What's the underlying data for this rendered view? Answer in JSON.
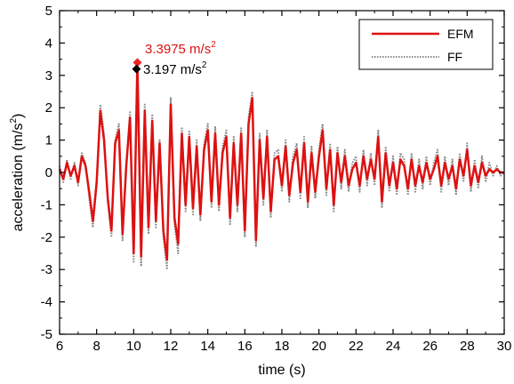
{
  "chart_data": {
    "type": "line",
    "xlabel": "time (s)",
    "ylabel_main": "acceleration (m/s",
    "ylabel_sup": "2",
    "ylabel_close": ")",
    "xlim": [
      6,
      30
    ],
    "ylim": [
      -5,
      5
    ],
    "x_ticks": [
      6,
      8,
      10,
      12,
      14,
      16,
      18,
      20,
      22,
      24,
      26,
      28,
      30
    ],
    "y_ticks": [
      -5,
      -4,
      -3,
      -2,
      -1,
      0,
      1,
      2,
      3,
      4,
      5
    ],
    "x_tick_labels": [
      "6",
      "8",
      "10",
      "12",
      "14",
      "16",
      "18",
      "20",
      "22",
      "24",
      "26",
      "28",
      "30"
    ],
    "y_tick_labels": [
      "-5",
      "-4",
      "-3",
      "-2",
      "-1",
      "0",
      "1",
      "2",
      "3",
      "4",
      "5"
    ],
    "grid": false,
    "legend_position": "top-right",
    "series": [
      {
        "name": "EFM",
        "color": "#dd1111",
        "style": "solid",
        "x": [
          6.0,
          6.2,
          6.4,
          6.6,
          6.8,
          7.0,
          7.2,
          7.4,
          7.6,
          7.8,
          8.0,
          8.2,
          8.4,
          8.6,
          8.8,
          9.0,
          9.2,
          9.4,
          9.6,
          9.8,
          10.0,
          10.2,
          10.4,
          10.6,
          10.8,
          11.0,
          11.2,
          11.4,
          11.6,
          11.8,
          12.0,
          12.2,
          12.4,
          12.6,
          12.8,
          13.0,
          13.2,
          13.4,
          13.6,
          13.8,
          14.0,
          14.2,
          14.4,
          14.6,
          14.8,
          15.0,
          15.2,
          15.4,
          15.6,
          15.8,
          16.0,
          16.2,
          16.4,
          16.6,
          16.8,
          17.0,
          17.2,
          17.4,
          17.6,
          17.8,
          18.0,
          18.2,
          18.4,
          18.6,
          18.8,
          19.0,
          19.2,
          19.4,
          19.6,
          19.8,
          20.0,
          20.2,
          20.4,
          20.6,
          20.8,
          21.0,
          21.2,
          21.4,
          21.6,
          21.8,
          22.0,
          22.2,
          22.4,
          22.6,
          22.8,
          23.0,
          23.2,
          23.4,
          23.6,
          23.8,
          24.0,
          24.2,
          24.4,
          24.6,
          24.8,
          25.0,
          25.2,
          25.4,
          25.6,
          25.8,
          26.0,
          26.2,
          26.4,
          26.6,
          26.8,
          27.0,
          27.2,
          27.4,
          27.6,
          27.8,
          28.0,
          28.2,
          28.4,
          28.6,
          28.8,
          29.0,
          29.2,
          29.4,
          29.6,
          29.8,
          30.0
        ],
        "y": [
          0.1,
          -0.2,
          0.3,
          -0.1,
          0.2,
          -0.3,
          0.5,
          0.2,
          -0.6,
          -1.5,
          -0.3,
          1.9,
          1.0,
          -0.8,
          -1.8,
          0.9,
          1.3,
          -1.9,
          0.2,
          1.7,
          -2.5,
          3.4,
          -2.6,
          1.9,
          -1.7,
          1.6,
          -1.5,
          0.9,
          -1.8,
          -2.7,
          2.1,
          -1.4,
          -2.2,
          1.2,
          -1.0,
          1.1,
          -1.1,
          0.8,
          -1.3,
          0.7,
          1.3,
          -0.9,
          1.2,
          -1.0,
          0.6,
          1.1,
          -1.4,
          0.9,
          -1.0,
          1.2,
          -1.8,
          1.5,
          2.3,
          -2.1,
          1.0,
          -0.8,
          1.1,
          -1.2,
          0.4,
          0.5,
          -0.4,
          0.8,
          -0.7,
          0.3,
          0.7,
          -0.6,
          0.9,
          -0.9,
          0.6,
          -0.6,
          0.5,
          1.3,
          -0.5,
          0.7,
          -1.0,
          0.6,
          -0.3,
          0.5,
          -0.4,
          0.1,
          0.3,
          -0.4,
          0.5,
          -0.2,
          0.4,
          -0.2,
          1.1,
          -0.9,
          0.6,
          -0.4,
          0.3,
          -0.5,
          0.4,
          0.2,
          -0.5,
          0.4,
          -0.4,
          0.2,
          -0.3,
          0.3,
          -0.2,
          0.1,
          0.5,
          -0.4,
          0.3,
          -0.2,
          0.2,
          -0.5,
          0.4,
          -0.1,
          0.7,
          -0.4,
          0.2,
          -0.3,
          0.3,
          -0.1,
          0.1,
          0.0,
          0.1,
          0.0,
          0.0
        ]
      },
      {
        "name": "FF",
        "color": "#888888",
        "style": "dotted",
        "x": [
          6.0,
          6.2,
          6.4,
          6.6,
          6.8,
          7.0,
          7.2,
          7.4,
          7.6,
          7.8,
          8.0,
          8.2,
          8.4,
          8.6,
          8.8,
          9.0,
          9.2,
          9.4,
          9.6,
          9.8,
          10.0,
          10.2,
          10.4,
          10.6,
          10.8,
          11.0,
          11.2,
          11.4,
          11.6,
          11.8,
          12.0,
          12.2,
          12.4,
          12.6,
          12.8,
          13.0,
          13.2,
          13.4,
          13.6,
          13.8,
          14.0,
          14.2,
          14.4,
          14.6,
          14.8,
          15.0,
          15.2,
          15.4,
          15.6,
          15.8,
          16.0,
          16.2,
          16.4,
          16.6,
          16.8,
          17.0,
          17.2,
          17.4,
          17.6,
          17.8,
          18.0,
          18.2,
          18.4,
          18.6,
          18.8,
          19.0,
          19.2,
          19.4,
          19.6,
          19.8,
          20.0,
          20.2,
          20.4,
          20.6,
          20.8,
          21.0,
          21.2,
          21.4,
          21.6,
          21.8,
          22.0,
          22.2,
          22.4,
          22.6,
          22.8,
          23.0,
          23.2,
          23.4,
          23.6,
          23.8,
          24.0,
          24.2,
          24.4,
          24.6,
          24.8,
          25.0,
          25.2,
          25.4,
          25.6,
          25.8,
          26.0,
          26.2,
          26.4,
          26.6,
          26.8,
          27.0,
          27.2,
          27.4,
          27.6,
          27.8,
          28.0,
          28.2,
          28.4,
          28.6,
          28.8,
          29.0,
          29.2,
          29.4,
          29.6,
          29.8,
          30.0
        ],
        "y": [
          0.2,
          -0.3,
          0.4,
          -0.2,
          0.3,
          -0.4,
          0.6,
          0.3,
          -0.8,
          -1.7,
          -0.4,
          2.1,
          1.2,
          -0.9,
          -2.0,
          1.0,
          1.5,
          -2.1,
          0.3,
          1.9,
          -2.8,
          3.2,
          -2.9,
          2.1,
          -1.9,
          1.8,
          -1.7,
          1.0,
          -2.0,
          -3.0,
          2.3,
          -1.6,
          -2.5,
          1.4,
          -1.2,
          1.3,
          -1.3,
          1.0,
          -1.5,
          0.9,
          1.5,
          -1.1,
          1.4,
          -1.2,
          0.8,
          1.3,
          -1.6,
          1.1,
          -1.2,
          1.4,
          -2.0,
          1.7,
          2.5,
          -2.3,
          1.2,
          -1.0,
          1.3,
          -1.4,
          0.6,
          0.7,
          -0.6,
          1.0,
          -0.9,
          0.5,
          0.9,
          -0.8,
          1.1,
          -1.1,
          0.8,
          -0.8,
          0.7,
          1.5,
          -0.7,
          0.9,
          -1.2,
          0.8,
          -0.5,
          0.7,
          -0.6,
          0.3,
          0.5,
          -0.6,
          0.7,
          -0.4,
          0.6,
          -0.4,
          1.3,
          -1.1,
          0.8,
          -0.6,
          0.5,
          -0.7,
          0.6,
          0.4,
          -0.7,
          0.6,
          -0.6,
          0.4,
          -0.5,
          0.5,
          -0.4,
          0.3,
          0.7,
          -0.6,
          0.5,
          -0.4,
          0.4,
          -0.7,
          0.6,
          -0.3,
          0.9,
          -0.6,
          0.4,
          -0.5,
          0.5,
          -0.3,
          0.3,
          -0.1,
          0.2,
          -0.1,
          0.0
        ]
      }
    ],
    "peaks": [
      {
        "series": "EFM",
        "x": 10.2,
        "y": 3.3975,
        "marker_color": "#ee2222",
        "label_main": "3.3975 m/s",
        "label_sup": "2"
      },
      {
        "series": "FF",
        "x": 10.15,
        "y": 3.197,
        "marker_color": "#000000",
        "label_main": "3.197 m/s",
        "label_sup": "2"
      }
    ]
  }
}
